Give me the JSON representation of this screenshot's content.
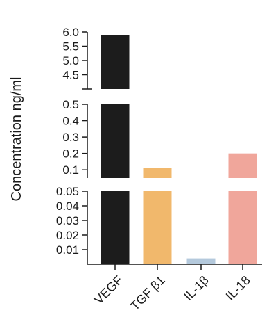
{
  "chart_data": {
    "type": "bar",
    "ylabel": "Concentration ng/ml",
    "xlabel": "",
    "title": "",
    "categories": [
      "VEGF",
      "TGF β1",
      "IL-1β",
      "IL-18"
    ],
    "values": [
      5.9,
      0.11,
      0.004,
      0.2
    ],
    "bar_colors": [
      "#1c1c1c",
      "#f1b86c",
      "#b4c9dc",
      "#f0a69b"
    ],
    "y_axis_breaks": [
      {
        "ylim": [
          0.0,
          0.05
        ],
        "ticks": [
          "0.01",
          "0.02",
          "0.03",
          "0.04",
          "0.05"
        ]
      },
      {
        "ylim": [
          0.05,
          0.5
        ],
        "ticks": [
          "0.1",
          "0.2",
          "0.3",
          "0.4",
          "0.5"
        ]
      },
      {
        "ylim": [
          4.0,
          6.0
        ],
        "ticks": [
          "4.5",
          "5.0",
          "5.5",
          "6.0"
        ]
      }
    ],
    "grid": false
  }
}
